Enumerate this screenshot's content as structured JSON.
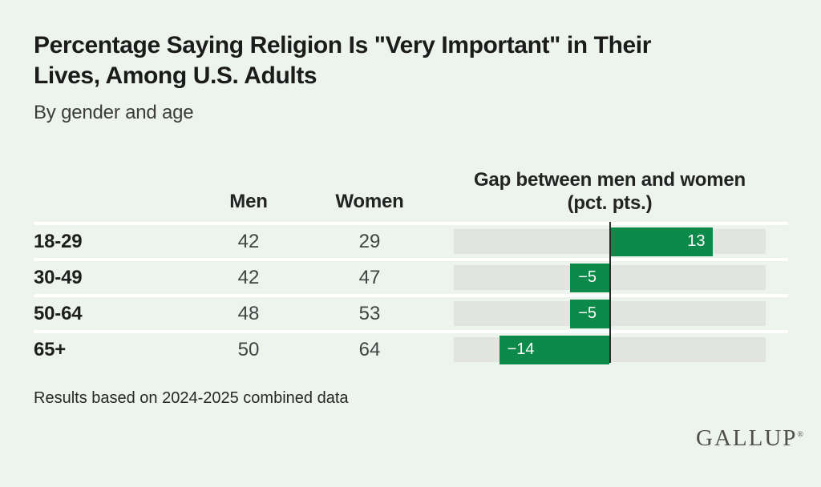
{
  "page": {
    "title_line1": "Percentage Saying Religion Is \"Very Important\" in Their",
    "title_line2": "Lives, Among U.S. Adults",
    "subtitle": "By gender and age",
    "footnote": "Results based on 2024-2025 combined data",
    "brand": "GALLUP",
    "brand_registered": "®"
  },
  "colors": {
    "background": "#edf4ed",
    "bar_green": "#0d8a4a",
    "track_gray": "#e1e4df",
    "zero_line": "#2b2b2b",
    "separator": "#ffffff",
    "title_text": "#1b1b1b",
    "value_text": "#3f4444"
  },
  "table": {
    "header": {
      "age": "",
      "men": "Men",
      "women": "Women",
      "gap_line1": "Gap between men and women",
      "gap_line2": "(pct. pts.)"
    }
  },
  "chart_data": {
    "type": "bar",
    "subtype": "horizontal-diverging-with-table",
    "title": "Percentage Saying Religion Is \"Very Important\" in Their Lives, Among U.S. Adults",
    "subtitle": "By gender and age",
    "categories": [
      "18-29",
      "30-49",
      "50-64",
      "65+"
    ],
    "series": [
      {
        "name": "Men",
        "values": [
          42,
          42,
          48,
          50
        ]
      },
      {
        "name": "Women",
        "values": [
          29,
          47,
          53,
          64
        ]
      },
      {
        "name": "Gap between men and women (pct. pts.)",
        "values": [
          13,
          -5,
          -5,
          -14
        ]
      }
    ],
    "rows": [
      {
        "age": "18-29",
        "men": "42",
        "women": "29",
        "gap": 13,
        "gap_label": "13"
      },
      {
        "age": "30-49",
        "men": "42",
        "women": "47",
        "gap": -5,
        "gap_label": "−5"
      },
      {
        "age": "50-64",
        "men": "48",
        "women": "53",
        "gap": -5,
        "gap_label": "−5"
      },
      {
        "age": "65+",
        "men": "50",
        "women": "64",
        "gap": -14,
        "gap_label": "−14"
      }
    ],
    "xlim": [
      -20,
      20
    ],
    "grid": false,
    "legend": false,
    "note": "Results based on 2024-2025 combined data"
  }
}
